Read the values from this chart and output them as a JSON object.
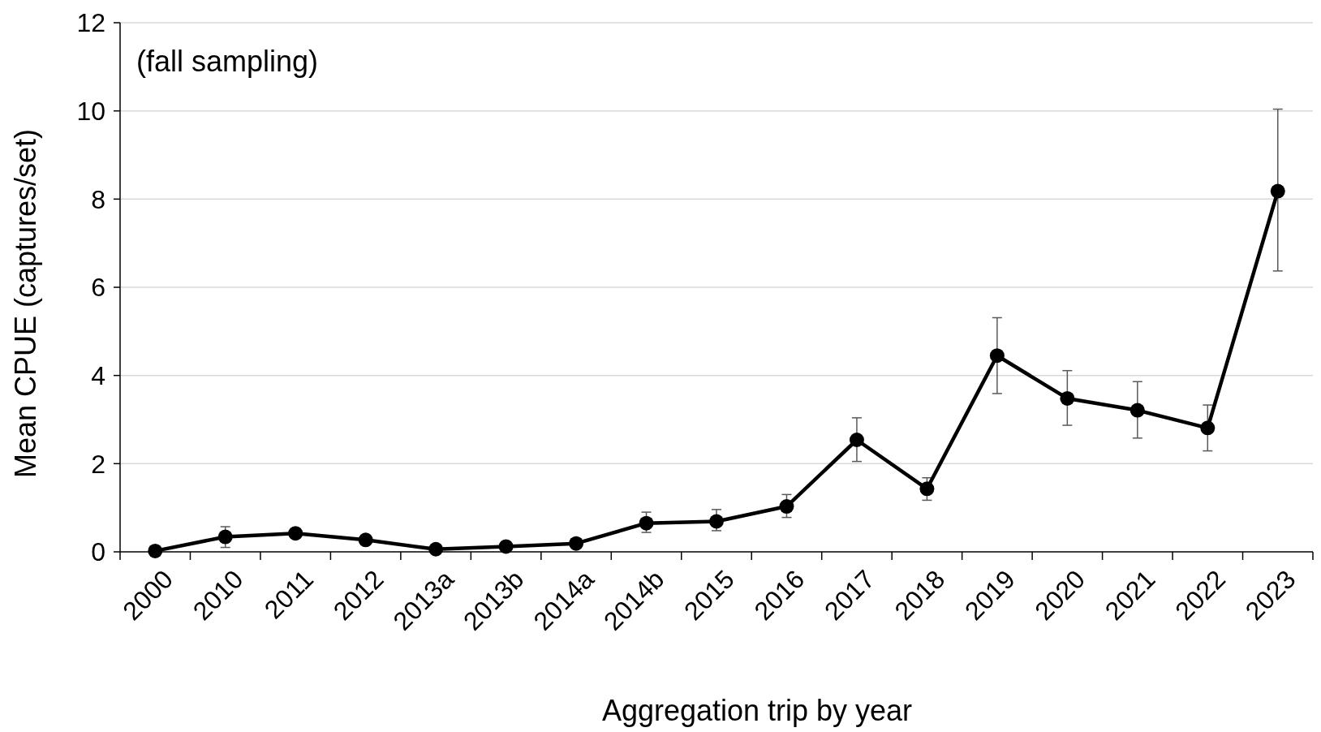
{
  "chart_data": {
    "type": "line",
    "xlabel": "Aggregation trip by year",
    "ylabel": "Mean CPUE (captures/set)",
    "annotations": [
      "(fall sampling)"
    ],
    "categories": [
      "2000",
      "2010",
      "2011",
      "2012",
      "2013a",
      "2013b",
      "2014a",
      "2014b",
      "2015",
      "2016",
      "2017",
      "2018",
      "2019",
      "2020",
      "2021",
      "2022",
      "2023"
    ],
    "series": [
      {
        "color": "#000000",
        "values": [
          0.02,
          0.34,
          0.42,
          0.27,
          0.06,
          0.12,
          0.19,
          0.65,
          0.69,
          1.03,
          2.54,
          1.43,
          4.45,
          3.48,
          3.21,
          2.81,
          8.18
        ],
        "errors": [
          null,
          [
            0.1,
            0.57
          ],
          null,
          null,
          null,
          null,
          null,
          [
            0.44,
            0.9
          ],
          [
            0.48,
            0.96
          ],
          [
            0.78,
            1.3
          ],
          [
            2.05,
            3.04
          ],
          [
            1.17,
            1.68
          ],
          [
            3.59,
            5.31
          ],
          [
            2.87,
            4.11
          ],
          [
            2.58,
            3.86
          ],
          [
            2.29,
            3.33
          ],
          [
            6.37,
            10.04
          ]
        ]
      }
    ],
    "ylim": [
      0,
      12
    ],
    "yticks": [
      0,
      2,
      4,
      6,
      8,
      10,
      12
    ],
    "grid": "y",
    "marker": "circle",
    "line_style": "solid"
  }
}
